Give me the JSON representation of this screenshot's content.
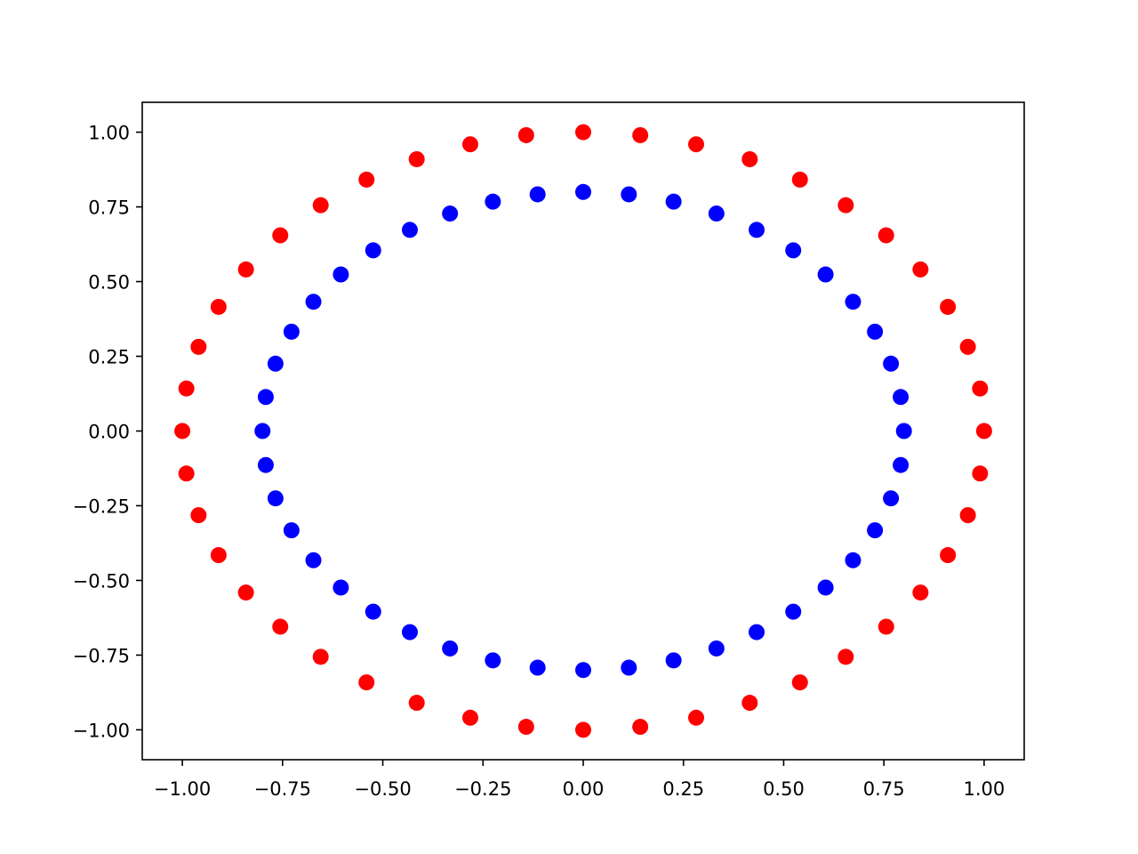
{
  "chart_data": {
    "type": "scatter",
    "title": "",
    "xlabel": "",
    "ylabel": "",
    "xlim": [
      -1.1,
      1.1
    ],
    "ylim": [
      -1.1,
      1.1
    ],
    "x_ticks": [
      -1.0,
      -0.75,
      -0.5,
      -0.25,
      0.0,
      0.25,
      0.5,
      0.75,
      1.0
    ],
    "y_ticks": [
      -1.0,
      -0.75,
      -0.5,
      -0.25,
      0.0,
      0.25,
      0.5,
      0.75,
      1.0
    ],
    "x_tick_labels": [
      "−1.00",
      "−0.75",
      "−0.50",
      "−0.25",
      "0.00",
      "0.25",
      "0.50",
      "0.75",
      "1.00"
    ],
    "y_tick_labels": [
      "−1.00",
      "−0.75",
      "−0.50",
      "−0.25",
      "0.00",
      "0.25",
      "0.50",
      "0.75",
      "1.00"
    ],
    "grid": false,
    "legend": "none",
    "series": [
      {
        "color": "#ff0000",
        "x": [
          1.0,
          0.9899,
          0.9595,
          0.9096,
          0.8413,
          0.7557,
          0.6549,
          0.5406,
          0.4154,
          0.2817,
          0.1423,
          0.0,
          -0.1423,
          -0.2817,
          -0.4154,
          -0.5406,
          -0.6549,
          -0.7557,
          -0.8413,
          -0.9096,
          -0.9595,
          -0.9899,
          -1.0,
          -0.9899,
          -0.9595,
          -0.9096,
          -0.8413,
          -0.7557,
          -0.6549,
          -0.5406,
          -0.4154,
          -0.2817,
          -0.1423,
          0.0,
          0.1423,
          0.2817,
          0.4154,
          0.5406,
          0.6549,
          0.7557,
          0.8413,
          0.9096,
          0.9595,
          0.9899
        ],
        "y": [
          0.0,
          0.1423,
          0.2817,
          0.4154,
          0.5406,
          0.6549,
          0.7557,
          0.8413,
          0.9096,
          0.9595,
          0.9899,
          1.0,
          0.9899,
          0.9595,
          0.9096,
          0.8413,
          0.7557,
          0.6549,
          0.5406,
          0.4154,
          0.2817,
          0.1423,
          0.0,
          -0.1423,
          -0.2817,
          -0.4154,
          -0.5406,
          -0.6549,
          -0.7557,
          -0.8413,
          -0.9096,
          -0.9595,
          -0.9899,
          -1.0,
          -0.9899,
          -0.9595,
          -0.9096,
          -0.8413,
          -0.7557,
          -0.6549,
          -0.5406,
          -0.4154,
          -0.2817,
          -0.1423
        ]
      },
      {
        "color": "#0000ff",
        "x": [
          0.8,
          0.7919,
          0.7676,
          0.7277,
          0.673,
          0.6046,
          0.5239,
          0.4325,
          0.3323,
          0.2254,
          0.1138,
          0.0,
          -0.1138,
          -0.2254,
          -0.3323,
          -0.4325,
          -0.5239,
          -0.6046,
          -0.673,
          -0.7277,
          -0.7676,
          -0.7919,
          -0.8,
          -0.7919,
          -0.7676,
          -0.7277,
          -0.673,
          -0.6046,
          -0.5239,
          -0.4325,
          -0.3323,
          -0.2254,
          -0.1138,
          0.0,
          0.1138,
          0.2254,
          0.3323,
          0.4325,
          0.5239,
          0.6046,
          0.673,
          0.7277,
          0.7676,
          0.7919
        ],
        "y": [
          0.0,
          0.1138,
          0.2254,
          0.3323,
          0.4325,
          0.5239,
          0.6046,
          0.673,
          0.7277,
          0.7676,
          0.7919,
          0.8,
          0.7919,
          0.7676,
          0.7277,
          0.673,
          0.6046,
          0.5239,
          0.4325,
          0.3323,
          0.2254,
          0.1138,
          0.0,
          -0.1138,
          -0.2254,
          -0.3323,
          -0.4325,
          -0.5239,
          -0.6046,
          -0.673,
          -0.7277,
          -0.7676,
          -0.7919,
          -0.8,
          -0.7919,
          -0.7676,
          -0.7277,
          -0.673,
          -0.6046,
          -0.5239,
          -0.4325,
          -0.3323,
          -0.2254,
          -0.1138
        ]
      }
    ]
  }
}
